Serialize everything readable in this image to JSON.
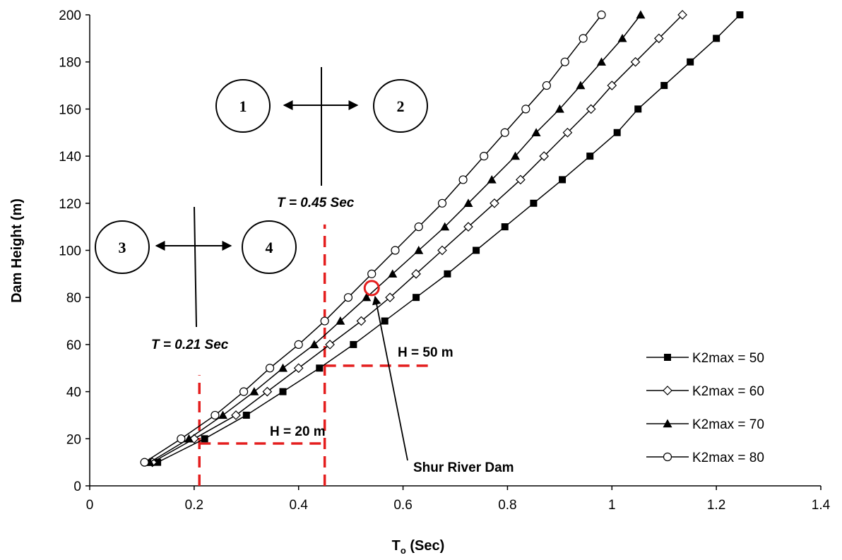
{
  "chart_data": {
    "type": "line",
    "xlabel": "T",
    "xlabel_sub": "o",
    "xlabel_suffix": " (Sec)",
    "ylabel": "Dam Height (m)",
    "xlim": [
      0,
      1.4
    ],
    "ylim": [
      0,
      200
    ],
    "x_ticks": [
      "0",
      "0.2",
      "0.4",
      "0.6",
      "0.8",
      "1",
      "1.2",
      "1.4"
    ],
    "y_ticks": [
      "0",
      "20",
      "40",
      "60",
      "80",
      "100",
      "120",
      "140",
      "160",
      "180",
      "200"
    ],
    "grid": false,
    "legend_position": "right",
    "series": [
      {
        "name": "K2max = 50",
        "marker": "square",
        "points": [
          [
            0.13,
            10
          ],
          [
            0.22,
            20
          ],
          [
            0.3,
            30
          ],
          [
            0.37,
            40
          ],
          [
            0.44,
            50
          ],
          [
            0.505,
            60
          ],
          [
            0.565,
            70
          ],
          [
            0.625,
            80
          ],
          [
            0.685,
            90
          ],
          [
            0.74,
            100
          ],
          [
            0.795,
            110
          ],
          [
            0.85,
            120
          ],
          [
            0.905,
            130
          ],
          [
            0.958,
            140
          ],
          [
            1.01,
            150
          ],
          [
            1.05,
            160
          ],
          [
            1.1,
            170
          ],
          [
            1.15,
            180
          ],
          [
            1.2,
            190
          ],
          [
            1.245,
            200
          ]
        ]
      },
      {
        "name": "K2max = 60",
        "marker": "diamond-open",
        "points": [
          [
            0.12,
            10
          ],
          [
            0.2,
            20
          ],
          [
            0.28,
            30
          ],
          [
            0.34,
            40
          ],
          [
            0.4,
            50
          ],
          [
            0.46,
            60
          ],
          [
            0.52,
            70
          ],
          [
            0.575,
            80
          ],
          [
            0.625,
            90
          ],
          [
            0.675,
            100
          ],
          [
            0.725,
            110
          ],
          [
            0.775,
            120
          ],
          [
            0.825,
            130
          ],
          [
            0.87,
            140
          ],
          [
            0.915,
            150
          ],
          [
            0.96,
            160
          ],
          [
            1.0,
            170
          ],
          [
            1.045,
            180
          ],
          [
            1.09,
            190
          ],
          [
            1.135,
            200
          ]
        ]
      },
      {
        "name": "K2max = 70",
        "marker": "triangle",
        "points": [
          [
            0.115,
            10
          ],
          [
            0.19,
            20
          ],
          [
            0.255,
            30
          ],
          [
            0.315,
            40
          ],
          [
            0.37,
            50
          ],
          [
            0.43,
            60
          ],
          [
            0.48,
            70
          ],
          [
            0.53,
            80
          ],
          [
            0.58,
            90
          ],
          [
            0.63,
            100
          ],
          [
            0.68,
            110
          ],
          [
            0.725,
            120
          ],
          [
            0.77,
            130
          ],
          [
            0.815,
            140
          ],
          [
            0.855,
            150
          ],
          [
            0.9,
            160
          ],
          [
            0.94,
            170
          ],
          [
            0.98,
            180
          ],
          [
            1.02,
            190
          ],
          [
            1.055,
            200
          ]
        ]
      },
      {
        "name": "K2max = 80",
        "marker": "circle-open",
        "points": [
          [
            0.105,
            10
          ],
          [
            0.175,
            20
          ],
          [
            0.24,
            30
          ],
          [
            0.295,
            40
          ],
          [
            0.345,
            50
          ],
          [
            0.4,
            60
          ],
          [
            0.45,
            70
          ],
          [
            0.495,
            80
          ],
          [
            0.54,
            90
          ],
          [
            0.585,
            100
          ],
          [
            0.63,
            110
          ],
          [
            0.675,
            120
          ],
          [
            0.715,
            130
          ],
          [
            0.755,
            140
          ],
          [
            0.795,
            150
          ],
          [
            0.835,
            160
          ],
          [
            0.875,
            170
          ],
          [
            0.91,
            180
          ],
          [
            0.945,
            190
          ],
          [
            0.98,
            200
          ]
        ]
      }
    ],
    "reference_lines": {
      "color": "#e41e1e",
      "h20": {
        "label": "H = 20 m",
        "x_from": 0.21,
        "x_to": 0.45,
        "y": 18
      },
      "h50": {
        "label": "H = 50 m",
        "x_from": 0.45,
        "x_to": 0.65,
        "y": 51
      },
      "v021": {
        "x": 0.21,
        "y_from": 0,
        "y_to": 47
      },
      "v045": {
        "x": 0.45,
        "y_from": 0,
        "y_to": 111
      }
    },
    "highlight_point": {
      "x": 0.54,
      "y": 84,
      "color": "#e41e1e"
    },
    "annotations": {
      "shur_river_dam": "Shur River Dam",
      "t045": "T = 0.45 Sec",
      "t021": "T = 0.21 Sec",
      "circle_1": "1",
      "circle_2": "2",
      "circle_3": "3",
      "circle_4": "4"
    }
  }
}
